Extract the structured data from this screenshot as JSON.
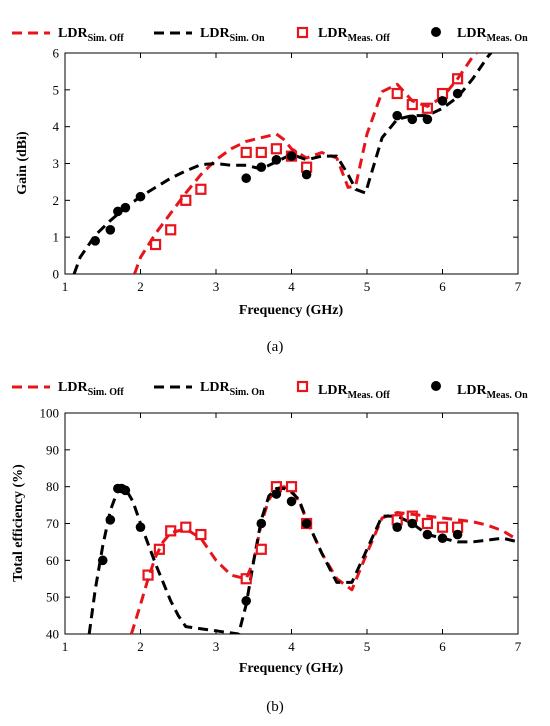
{
  "figure": {
    "caption_a": "(a)",
    "caption_b": "(b)"
  },
  "legend": {
    "sim_off": {
      "main": "LDR",
      "sub": "Sim. Off"
    },
    "sim_on": {
      "main": "LDR",
      "sub": "Sim. On"
    },
    "meas_off": {
      "main": "LDR",
      "sub": "Meas. Off"
    },
    "meas_on": {
      "main": "LDR",
      "sub": "Meas. On"
    }
  },
  "colors": {
    "off": "#e8141c",
    "on": "#000000"
  },
  "chart_data": [
    {
      "type": "line",
      "xlabel": "Frequency (GHz)",
      "ylabel": "Gain (dBi)",
      "xlim": [
        1,
        7
      ],
      "ylim": [
        0,
        6
      ],
      "xticks": [
        1,
        2,
        3,
        4,
        5,
        6,
        7
      ],
      "yticks": [
        0,
        1,
        2,
        3,
        4,
        5,
        6
      ],
      "legend_position": "top",
      "series": [
        {
          "name": "LDR Sim. Off",
          "style": "dashed-line",
          "color": "#e8141c",
          "x": [
            1.92,
            2.0,
            2.2,
            2.4,
            2.6,
            2.8,
            3.0,
            3.2,
            3.4,
            3.6,
            3.8,
            3.9,
            4.0,
            4.2,
            4.4,
            4.6,
            4.75,
            4.85,
            5.0,
            5.2,
            5.4,
            5.6,
            5.8,
            6.0,
            6.2,
            6.4,
            6.55
          ],
          "y": [
            0.0,
            0.45,
            1.1,
            1.65,
            2.2,
            2.7,
            3.1,
            3.4,
            3.6,
            3.7,
            3.8,
            3.65,
            3.4,
            3.15,
            3.3,
            3.15,
            2.35,
            2.4,
            3.8,
            4.95,
            5.15,
            4.7,
            4.55,
            4.8,
            5.3,
            5.9,
            6.2
          ]
        },
        {
          "name": "LDR Sim. On",
          "style": "dashed-line",
          "color": "#000000",
          "x": [
            1.12,
            1.2,
            1.4,
            1.6,
            1.8,
            2.0,
            2.2,
            2.4,
            2.6,
            2.8,
            3.0,
            3.2,
            3.4,
            3.6,
            3.8,
            4.0,
            4.2,
            4.4,
            4.6,
            4.75,
            4.85,
            4.98,
            5.2,
            5.4,
            5.6,
            5.8,
            6.0,
            6.2,
            6.4,
            6.6,
            6.72
          ],
          "y": [
            0.0,
            0.45,
            1.05,
            1.45,
            1.8,
            2.1,
            2.35,
            2.6,
            2.8,
            2.97,
            3.0,
            2.95,
            2.95,
            2.85,
            3.05,
            3.25,
            3.1,
            3.2,
            3.2,
            2.7,
            2.3,
            2.2,
            3.7,
            4.2,
            4.3,
            4.3,
            4.5,
            4.8,
            5.3,
            5.9,
            6.2
          ]
        },
        {
          "name": "LDR Meas. Off",
          "style": "open-square",
          "color": "#e8141c",
          "x": [
            2.2,
            2.4,
            2.6,
            2.8,
            3.4,
            3.6,
            3.8,
            4.0,
            4.2,
            5.4,
            5.6,
            5.8,
            6.0,
            6.2
          ],
          "y": [
            0.8,
            1.2,
            2.0,
            2.3,
            3.3,
            3.3,
            3.4,
            3.2,
            2.9,
            4.9,
            4.6,
            4.5,
            4.9,
            5.3
          ]
        },
        {
          "name": "LDR Meas. On",
          "style": "filled-circle",
          "color": "#000000",
          "x": [
            1.4,
            1.6,
            1.7,
            1.8,
            2.0,
            3.4,
            3.6,
            3.8,
            4.0,
            4.2,
            5.4,
            5.6,
            5.8,
            6.0,
            6.2
          ],
          "y": [
            0.9,
            1.2,
            1.7,
            1.8,
            2.1,
            2.6,
            2.9,
            3.1,
            3.2,
            2.7,
            4.3,
            4.2,
            4.2,
            4.7,
            4.9
          ]
        }
      ]
    },
    {
      "type": "line",
      "xlabel": "Frequency (GHz)",
      "ylabel": "Total efficiency (%)",
      "xlim": [
        1,
        7
      ],
      "ylim": [
        40,
        100
      ],
      "xticks": [
        1,
        2,
        3,
        4,
        5,
        6,
        7
      ],
      "yticks": [
        40,
        50,
        60,
        70,
        80,
        90,
        100
      ],
      "legend_position": "top",
      "series": [
        {
          "name": "LDR Sim. Off",
          "style": "dashed-line",
          "color": "#e8141c",
          "x": [
            1.88,
            2.0,
            2.1,
            2.2,
            2.3,
            2.4,
            2.6,
            2.8,
            3.0,
            3.2,
            3.4,
            3.5,
            3.6,
            3.7,
            3.8,
            3.9,
            4.0,
            4.1,
            4.2,
            4.4,
            4.6,
            4.8,
            5.0,
            5.2,
            5.4,
            5.6,
            5.8,
            6.0,
            6.2,
            6.4,
            6.6,
            6.8,
            7.0
          ],
          "y": [
            40.0,
            48.0,
            55.0,
            61.0,
            65.0,
            67.5,
            68.5,
            66.0,
            60.0,
            56.0,
            55.0,
            60.0,
            70.0,
            76.5,
            79.5,
            80.0,
            79.0,
            76.0,
            71.0,
            62.0,
            55.0,
            52.0,
            62.0,
            71.5,
            73.0,
            72.5,
            72.0,
            71.5,
            71.0,
            70.5,
            69.5,
            68.0,
            65.5
          ]
        },
        {
          "name": "LDR Sim. On",
          "style": "dashed-line",
          "color": "#000000",
          "x": [
            1.32,
            1.4,
            1.5,
            1.6,
            1.7,
            1.75,
            1.8,
            1.9,
            2.0,
            2.2,
            2.4,
            2.5,
            2.6,
            3.3,
            3.4,
            3.5,
            3.6,
            3.7,
            3.8,
            3.9,
            4.0,
            4.1,
            4.2,
            4.4,
            4.6,
            4.8,
            5.0,
            5.2,
            5.4,
            5.6,
            5.8,
            6.0,
            6.2,
            6.4,
            6.6,
            6.8,
            7.0
          ],
          "y": [
            40.0,
            52.0,
            64.0,
            73.5,
            79.0,
            80.0,
            79.5,
            76.0,
            70.0,
            59.0,
            49.0,
            45.0,
            42.0,
            40.0,
            48.0,
            60.0,
            71.0,
            77.5,
            79.5,
            79.5,
            78.5,
            76.5,
            71.0,
            62.0,
            54.0,
            54.0,
            63.0,
            72.0,
            72.0,
            70.0,
            67.0,
            66.0,
            65.0,
            65.0,
            65.5,
            66.0,
            65.0
          ]
        },
        {
          "name": "LDR Meas. Off",
          "style": "open-square",
          "color": "#e8141c",
          "x": [
            2.1,
            2.25,
            2.4,
            2.6,
            2.8,
            3.4,
            3.6,
            3.8,
            4.0,
            4.2,
            5.4,
            5.6,
            5.8,
            6.0,
            6.2
          ],
          "y": [
            56,
            63,
            68,
            69,
            67,
            55,
            63,
            80,
            80,
            70,
            71,
            72,
            70,
            69,
            69
          ]
        },
        {
          "name": "LDR Meas. On",
          "style": "filled-circle",
          "color": "#000000",
          "x": [
            1.5,
            1.6,
            1.7,
            1.75,
            1.8,
            2.0,
            3.4,
            3.6,
            3.8,
            4.0,
            4.2,
            5.4,
            5.6,
            5.8,
            6.0,
            6.2
          ],
          "y": [
            60,
            71,
            79.5,
            79.5,
            79,
            69,
            49,
            70,
            78,
            76,
            70,
            69,
            70,
            67,
            66,
            67
          ]
        }
      ]
    }
  ]
}
